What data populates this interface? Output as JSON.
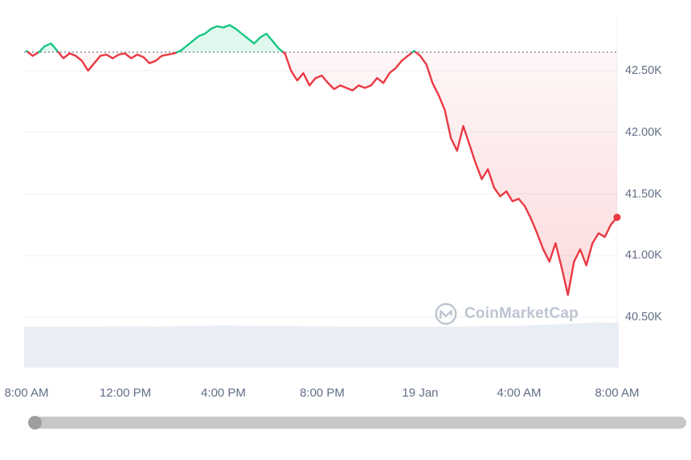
{
  "watermark": {
    "text": "CoinMarketCap"
  },
  "scrollbar": {
    "present": true
  },
  "chart_data": {
    "type": "line",
    "title": "",
    "xlabel": "",
    "ylabel": "",
    "legend": "none",
    "grid": "horizontal",
    "x_ticks": [
      "8:00 AM",
      "12:00 PM",
      "4:00 PM",
      "8:00 PM",
      "19 Jan",
      "4:00 AM",
      "8:00 AM"
    ],
    "y_ticks": [
      "42.50K",
      "42.00K",
      "41.50K",
      "41.00K",
      "40.50K"
    ],
    "y_tick_values": [
      42.5,
      42.0,
      41.5,
      41.0,
      40.5
    ],
    "ylim": [
      40.3,
      42.95
    ],
    "hours_span": 24,
    "reference_price": 42.65,
    "prices": [
      42.66,
      42.62,
      42.65,
      42.7,
      42.72,
      42.66,
      42.6,
      42.64,
      42.62,
      42.58,
      42.5,
      42.56,
      42.62,
      42.63,
      42.6,
      42.63,
      42.64,
      42.6,
      42.63,
      42.61,
      42.56,
      42.58,
      42.62,
      42.63,
      42.64,
      42.66,
      42.7,
      42.74,
      42.78,
      42.8,
      42.84,
      42.86,
      42.85,
      42.87,
      42.84,
      42.8,
      42.76,
      42.72,
      42.77,
      42.8,
      42.74,
      42.68,
      42.64,
      42.5,
      42.42,
      42.48,
      42.38,
      42.44,
      42.46,
      42.4,
      42.35,
      42.38,
      42.36,
      42.34,
      42.38,
      42.36,
      42.38,
      42.44,
      42.4,
      42.48,
      42.52,
      42.58,
      42.62,
      42.66,
      42.62,
      42.55,
      42.4,
      42.3,
      42.18,
      41.95,
      41.85,
      42.05,
      41.9,
      41.75,
      41.62,
      41.7,
      41.55,
      41.48,
      41.52,
      41.44,
      41.46,
      41.4,
      41.3,
      41.18,
      41.05,
      40.95,
      41.1,
      40.9,
      40.68,
      40.95,
      41.05,
      40.92,
      41.1,
      41.18,
      41.15,
      41.25,
      41.31
    ],
    "volume_profile": [
      0.45,
      0.44,
      0.46,
      0.45,
      0.46,
      0.47,
      0.45,
      0.48,
      0.52,
      0.55,
      0.52,
      0.5,
      0.48,
      0.47,
      0.46,
      0.45,
      0.46,
      0.45,
      0.44,
      0.45,
      0.46,
      0.48,
      0.5,
      0.55,
      0.62,
      0.72,
      0.82,
      0.78
    ],
    "colors": {
      "up": "#16c784",
      "down": "#ea3943",
      "up_fill_opacity": 0.13,
      "grid": "#eff2f5",
      "axis_text": "#616e85",
      "reference": "#737b8b",
      "volume_fill": "#e9eef4",
      "watermark": "#bdc5d1",
      "scrollbar_track": "#c7c7c7",
      "scrollbar_knob": "#9e9e9e"
    }
  }
}
